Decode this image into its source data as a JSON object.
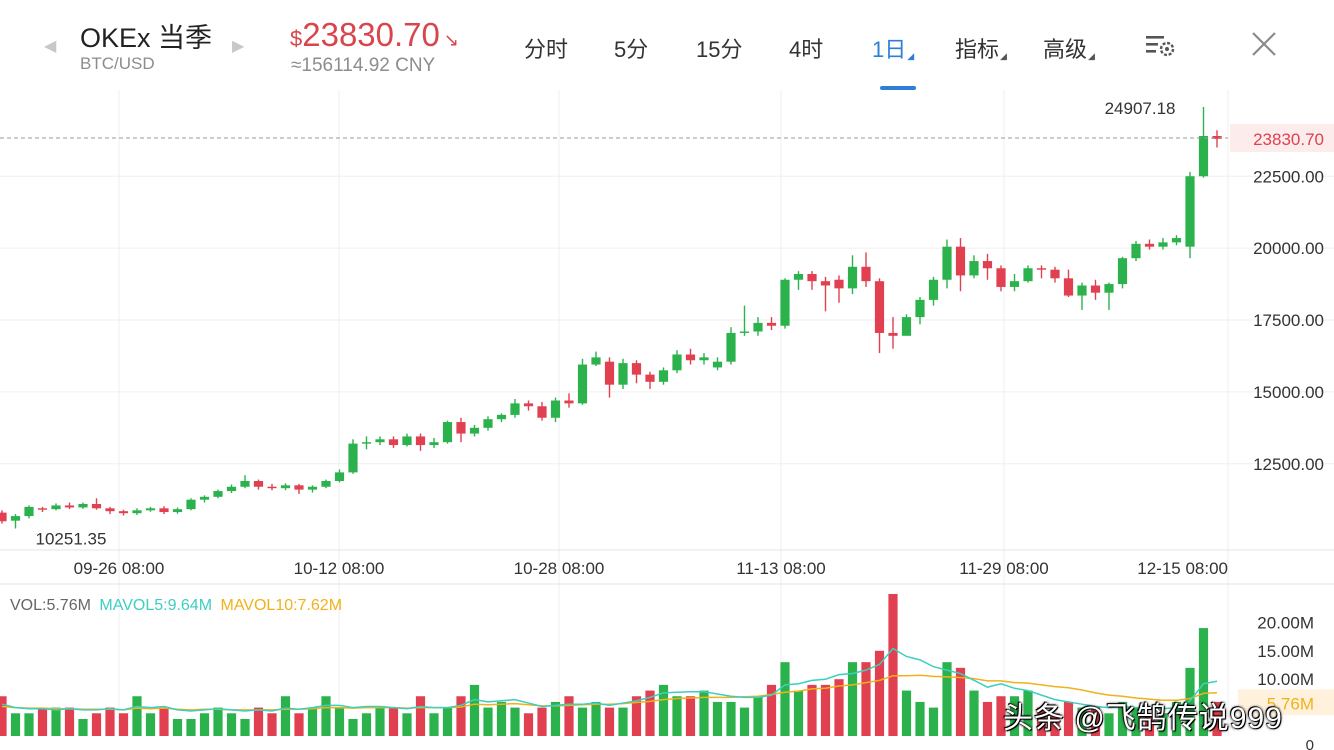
{
  "header": {
    "prev_arrow": "◀",
    "next_arrow": "▶",
    "symbol": "OKEx 当季",
    "pair": "BTC/USD",
    "currency_symbol": "$",
    "price": "23830.70",
    "price_trend": "↘",
    "cny": "≈156114.92 CNY",
    "tabs": [
      {
        "label": "分时",
        "active": false,
        "has_corner": false
      },
      {
        "label": "5分",
        "active": false,
        "has_corner": false
      },
      {
        "label": "15分",
        "active": false,
        "has_corner": false
      },
      {
        "label": "4时",
        "active": false,
        "has_corner": false
      },
      {
        "label": "1日",
        "active": true,
        "has_corner": true
      },
      {
        "label": "指标",
        "active": false,
        "has_corner": true
      },
      {
        "label": "高级",
        "active": false,
        "has_corner": true
      }
    ],
    "corner_glyph": "◢",
    "settings_icon": "chart-settings-icon",
    "close_icon": "close-icon"
  },
  "colors": {
    "up": "#2bb24c",
    "down": "#e0404f",
    "accent": "#2e7fd8",
    "ma5": "#3ccfc0",
    "ma10": "#f0b21a",
    "grid": "#efefef",
    "axis_text": "#333333"
  },
  "chart_data": [
    {
      "type": "candlestick",
      "y_axis_labels": [
        "22500.00",
        "20000.00",
        "17500.00",
        "15000.00",
        "12500.00"
      ],
      "y_ticks": [
        22500,
        20000,
        17500,
        15000,
        12500
      ],
      "ylim": [
        9500,
        25500
      ],
      "x_axis_labels": [
        "09-26 08:00",
        "10-12 08:00",
        "10-28 08:00",
        "11-13 08:00",
        "11-29 08:00",
        "12-15 08:00"
      ],
      "high_label": "24907.18",
      "low_label": "10251.35",
      "current_price_label": "23830.70",
      "current_price": 23830.7,
      "candles": [
        [
          10800,
          10500,
          10880,
          10420
        ],
        [
          10520,
          10680,
          10750,
          10250
        ],
        [
          10680,
          11000,
          11050,
          10600
        ],
        [
          10950,
          10920,
          11000,
          10820
        ],
        [
          10920,
          11050,
          11120,
          10880
        ],
        [
          11050,
          10980,
          11150,
          10920
        ],
        [
          10980,
          11100,
          11150,
          10930
        ],
        [
          11100,
          10950,
          11300,
          10900
        ],
        [
          10950,
          10850,
          11000,
          10750
        ],
        [
          10850,
          10780,
          10900,
          10700
        ],
        [
          10780,
          10880,
          10950,
          10720
        ],
        [
          10880,
          10950,
          11000,
          10830
        ],
        [
          10950,
          10820,
          11020,
          10750
        ],
        [
          10820,
          10920,
          10980,
          10760
        ],
        [
          10920,
          11250,
          11300,
          10880
        ],
        [
          11250,
          11350,
          11400,
          11150
        ],
        [
          11350,
          11550,
          11600,
          11300
        ],
        [
          11550,
          11700,
          11780,
          11480
        ],
        [
          11700,
          11900,
          12100,
          11650
        ],
        [
          11900,
          11700,
          11950,
          11600
        ],
        [
          11700,
          11650,
          11800,
          11580
        ],
        [
          11650,
          11750,
          11820,
          11580
        ],
        [
          11750,
          11600,
          11800,
          11450
        ],
        [
          11600,
          11700,
          11750,
          11500
        ],
        [
          11700,
          11900,
          11950,
          11650
        ],
        [
          11900,
          12200,
          12300,
          11850
        ],
        [
          12200,
          13200,
          13350,
          12150
        ],
        [
          13200,
          13250,
          13450,
          13000
        ],
        [
          13250,
          13350,
          13450,
          13150
        ],
        [
          13350,
          13150,
          13450,
          13050
        ],
        [
          13150,
          13450,
          13550,
          13100
        ],
        [
          13450,
          13150,
          13550,
          12950
        ],
        [
          13150,
          13250,
          13400,
          13050
        ],
        [
          13250,
          13950,
          14000,
          13200
        ],
        [
          13950,
          13550,
          14100,
          13250
        ],
        [
          13550,
          13750,
          13850,
          13450
        ],
        [
          13750,
          14050,
          14150,
          13650
        ],
        [
          14050,
          14200,
          14250,
          13950
        ],
        [
          14200,
          14600,
          14750,
          14100
        ],
        [
          14600,
          14500,
          14700,
          14350
        ],
        [
          14500,
          14100,
          14650,
          14000
        ],
        [
          14100,
          14700,
          14800,
          13950
        ],
        [
          14700,
          14600,
          14950,
          14450
        ],
        [
          14600,
          15950,
          16150,
          14550
        ],
        [
          15950,
          16200,
          16400,
          15900
        ],
        [
          16050,
          15250,
          16200,
          14800
        ],
        [
          15250,
          16000,
          16150,
          15100
        ],
        [
          16000,
          15600,
          16100,
          15300
        ],
        [
          15600,
          15350,
          15700,
          15100
        ],
        [
          15350,
          15750,
          15850,
          15250
        ],
        [
          15750,
          16300,
          16450,
          15650
        ],
        [
          16300,
          16100,
          16500,
          15950
        ],
        [
          16100,
          16200,
          16350,
          15950
        ],
        [
          15850,
          16050,
          16200,
          15750
        ],
        [
          16050,
          17050,
          17250,
          15950
        ],
        [
          17050,
          17100,
          18000,
          16950
        ],
        [
          17100,
          17400,
          17600,
          16950
        ],
        [
          17400,
          17300,
          17600,
          17150
        ],
        [
          17300,
          18900,
          18950,
          17200
        ],
        [
          18900,
          19100,
          19200,
          18550
        ],
        [
          19100,
          18850,
          19200,
          18550
        ],
        [
          18850,
          18700,
          19000,
          17800
        ],
        [
          18900,
          18600,
          19050,
          18100
        ],
        [
          18600,
          19350,
          19750,
          18400
        ],
        [
          19350,
          18850,
          19850,
          18650
        ],
        [
          18850,
          17050,
          18950,
          16350
        ],
        [
          17050,
          16950,
          17600,
          16500
        ],
        [
          16950,
          17600,
          17700,
          17150
        ],
        [
          17600,
          18200,
          18300,
          17350
        ],
        [
          18200,
          18900,
          19000,
          18000
        ],
        [
          18900,
          20050,
          20300,
          18600
        ],
        [
          20050,
          19050,
          20350,
          18500
        ],
        [
          19050,
          19550,
          19750,
          18950
        ],
        [
          19550,
          19300,
          19800,
          18900
        ],
        [
          19300,
          18650,
          19400,
          18500
        ],
        [
          18650,
          18850,
          19100,
          18500
        ],
        [
          18850,
          19300,
          19400,
          18800
        ],
        [
          19300,
          19250,
          19400,
          18950
        ],
        [
          19250,
          18950,
          19350,
          18800
        ],
        [
          18950,
          18350,
          19250,
          18300
        ],
        [
          18350,
          18700,
          18800,
          17850
        ],
        [
          18700,
          18450,
          18900,
          18200
        ],
        [
          18450,
          18750,
          18800,
          17850
        ],
        [
          18750,
          19650,
          19700,
          18600
        ],
        [
          19650,
          20150,
          20250,
          19550
        ],
        [
          20150,
          20050,
          20300,
          19950
        ],
        [
          20050,
          20200,
          20350,
          19950
        ],
        [
          20200,
          20350,
          20450,
          20100
        ],
        [
          20050,
          22500,
          22650,
          19650
        ],
        [
          22500,
          23900,
          24907,
          22450
        ],
        [
          23900,
          23800,
          24100,
          23500
        ]
      ]
    },
    {
      "type": "bar",
      "legend": {
        "vol": "VOL:5.76M",
        "ma5": "MAVOL5:9.64M",
        "ma10": "MAVOL10:7.62M"
      },
      "y_axis_labels": [
        "20.00M",
        "15.00M",
        "10.00M",
        "5.76M"
      ],
      "y_ticks": [
        20,
        15,
        10,
        5.76
      ],
      "zero_label": "0",
      "ylim": [
        0,
        25
      ],
      "volumes": [
        7,
        4,
        4,
        5,
        5,
        5,
        3,
        4,
        5,
        4,
        7,
        4,
        5,
        3,
        3,
        4,
        5,
        4,
        3,
        5,
        4,
        7,
        4,
        5,
        7,
        5,
        3,
        4,
        5,
        5,
        4,
        7,
        4,
        5,
        7,
        9,
        5,
        6,
        5,
        4,
        5,
        6,
        7,
        5,
        6,
        5,
        5,
        7,
        8,
        9,
        7,
        7,
        8,
        6,
        6,
        5,
        7,
        9,
        13,
        8,
        9,
        9,
        10,
        13,
        13,
        15,
        25,
        8,
        6,
        5,
        13,
        12,
        8,
        6,
        7,
        7,
        8,
        5,
        4,
        6,
        5,
        5,
        4,
        6,
        5,
        4,
        4,
        6,
        12,
        19,
        6
      ],
      "ma5": [
        5.6,
        5.0,
        4.8,
        4.8,
        4.6,
        4.8,
        4.6,
        4.6,
        4.8,
        4.6,
        5.2,
        5.0,
        5.2,
        4.6,
        4.4,
        4.6,
        4.8,
        4.6,
        4.4,
        4.6,
        4.4,
        4.9,
        4.7,
        5.0,
        5.4,
        5.4,
        5.0,
        5.2,
        5.2,
        5.0,
        4.8,
        5.2,
        5.0,
        5.0,
        5.4,
        6.4,
        6.0,
        6.2,
        6.4,
        5.8,
        5.2,
        5.4,
        5.6,
        5.6,
        5.8,
        5.4,
        5.8,
        6.2,
        6.8,
        7.6,
        7.7,
        7.8,
        7.8,
        7.4,
        7.0,
        6.8,
        6.8,
        7.2,
        9.0,
        9.2,
        9.8,
        10.0,
        10.8,
        11.0,
        11.6,
        12.6,
        15.4,
        14.0,
        13.4,
        12.2,
        11.6,
        11.0,
        9.8,
        8.6,
        9.2,
        8.4,
        8.0,
        7.2,
        6.4,
        6.0,
        5.6,
        5.2,
        5.0,
        5.2,
        5.0,
        5.0,
        4.8,
        5.0,
        6.2,
        9.2,
        9.64
      ],
      "ma10": [
        5.2,
        5.0,
        4.9,
        4.9,
        4.8,
        4.8,
        4.7,
        4.7,
        4.7,
        4.6,
        4.9,
        4.8,
        4.9,
        4.7,
        4.6,
        4.7,
        4.7,
        4.6,
        4.6,
        4.6,
        4.6,
        4.7,
        4.7,
        4.8,
        5.0,
        5.0,
        4.9,
        5.0,
        5.0,
        5.0,
        4.9,
        5.0,
        5.0,
        5.0,
        5.1,
        5.6,
        5.5,
        5.6,
        5.7,
        5.5,
        5.3,
        5.3,
        5.4,
        5.5,
        5.6,
        5.6,
        5.7,
        5.9,
        6.1,
        6.4,
        6.6,
        6.7,
        6.8,
        6.8,
        6.8,
        6.9,
        7.0,
        7.3,
        7.7,
        7.9,
        8.3,
        8.4,
        8.8,
        9.0,
        9.4,
        9.8,
        10.6,
        10.6,
        10.7,
        10.5,
        10.4,
        10.3,
        10.1,
        9.7,
        9.7,
        9.4,
        9.3,
        9.0,
        8.7,
        8.5,
        8.1,
        7.6,
        7.2,
        7.0,
        6.7,
        6.5,
        6.3,
        6.3,
        6.6,
        7.5,
        7.62
      ]
    }
  ],
  "watermark": "头条 @飞鹄传说999"
}
